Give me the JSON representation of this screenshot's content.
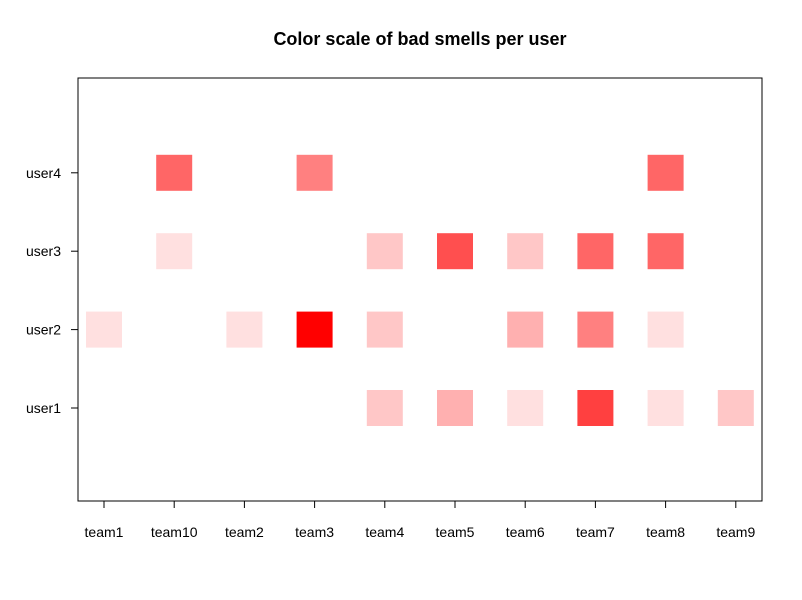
{
  "chart_data": {
    "type": "heatmap",
    "title": "Color scale of bad smells per user",
    "xlabel": "",
    "ylabel": "",
    "x_categories": [
      "team1",
      "team10",
      "team2",
      "team3",
      "team4",
      "team5",
      "team6",
      "team7",
      "team8",
      "team9"
    ],
    "y_categories": [
      "user1",
      "user2",
      "user3",
      "user4"
    ],
    "color_scale": {
      "low": "#ffffff",
      "high": "#ff0000"
    },
    "intensity_units": "fraction of max (0-1), estimated from color",
    "cells": [
      {
        "x": "team4",
        "y": "user1",
        "value": 0.22
      },
      {
        "x": "team5",
        "y": "user1",
        "value": 0.31
      },
      {
        "x": "team6",
        "y": "user1",
        "value": 0.12
      },
      {
        "x": "team7",
        "y": "user1",
        "value": 0.75
      },
      {
        "x": "team8",
        "y": "user1",
        "value": 0.12
      },
      {
        "x": "team9",
        "y": "user1",
        "value": 0.22
      },
      {
        "x": "team1",
        "y": "user2",
        "value": 0.12
      },
      {
        "x": "team2",
        "y": "user2",
        "value": 0.12
      },
      {
        "x": "team3",
        "y": "user2",
        "value": 1.0
      },
      {
        "x": "team4",
        "y": "user2",
        "value": 0.22
      },
      {
        "x": "team6",
        "y": "user2",
        "value": 0.31
      },
      {
        "x": "team7",
        "y": "user2",
        "value": 0.5
      },
      {
        "x": "team8",
        "y": "user2",
        "value": 0.12
      },
      {
        "x": "team10",
        "y": "user3",
        "value": 0.12
      },
      {
        "x": "team4",
        "y": "user3",
        "value": 0.22
      },
      {
        "x": "team5",
        "y": "user3",
        "value": 0.69
      },
      {
        "x": "team6",
        "y": "user3",
        "value": 0.22
      },
      {
        "x": "team7",
        "y": "user3",
        "value": 0.6
      },
      {
        "x": "team8",
        "y": "user3",
        "value": 0.6
      },
      {
        "x": "team10",
        "y": "user4",
        "value": 0.6
      },
      {
        "x": "team3",
        "y": "user4",
        "value": 0.5
      },
      {
        "x": "team8",
        "y": "user4",
        "value": 0.6
      }
    ],
    "grid": false,
    "legend": "none"
  }
}
